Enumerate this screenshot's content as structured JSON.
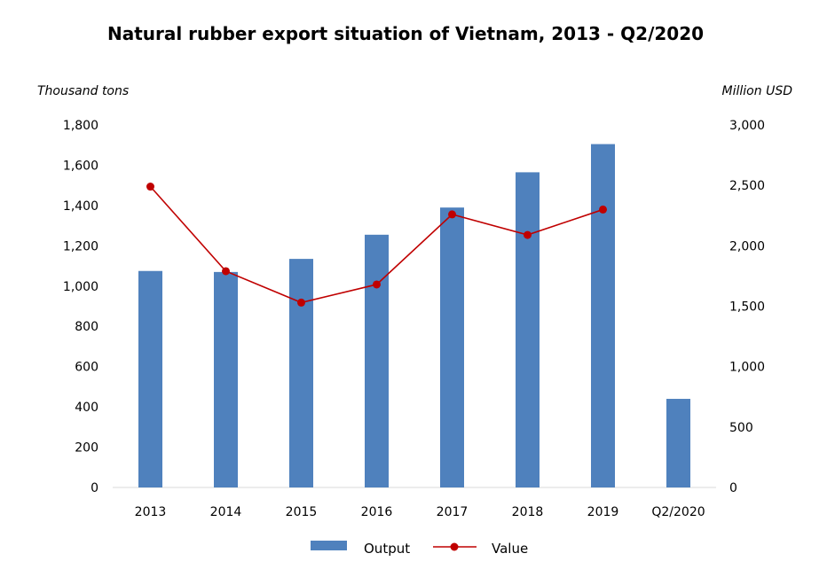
{
  "chart_data": {
    "type": "bar",
    "title": "Natural rubber export situation of Vietnam, 2013 - Q2/2020",
    "categories": [
      "2013",
      "2014",
      "2015",
      "2016",
      "2017",
      "2018",
      "2019",
      "Q2/2020"
    ],
    "y_left": {
      "label": "Thousand tons",
      "ylim": [
        0,
        1800
      ],
      "ticks": [
        0,
        200,
        400,
        600,
        800,
        1000,
        1200,
        1400,
        1600,
        1800
      ],
      "tick_labels": [
        "0",
        "200",
        "400",
        "600",
        "800",
        "1,000",
        "1,200",
        "1,400",
        "1,600",
        "1,800"
      ]
    },
    "y_right": {
      "label": "Million USD",
      "ylim": [
        0,
        3000
      ],
      "ticks": [
        0,
        500,
        1000,
        1500,
        2000,
        2500,
        3000
      ],
      "tick_labels": [
        "0",
        "500",
        "1,000",
        "1,500",
        "2,000",
        "2,500",
        "3,000"
      ]
    },
    "series": [
      {
        "name": "Output",
        "type": "bar",
        "axis": "left",
        "color": "#4f81bd",
        "values": [
          1075,
          1070,
          1135,
          1255,
          1390,
          1565,
          1705,
          440
        ]
      },
      {
        "name": "Value",
        "type": "line",
        "axis": "right",
        "color": "#c00000",
        "values": [
          2490,
          1790,
          1530,
          1680,
          2260,
          2090,
          2300,
          null
        ]
      }
    ],
    "grid": false,
    "legend_position": "bottom"
  }
}
